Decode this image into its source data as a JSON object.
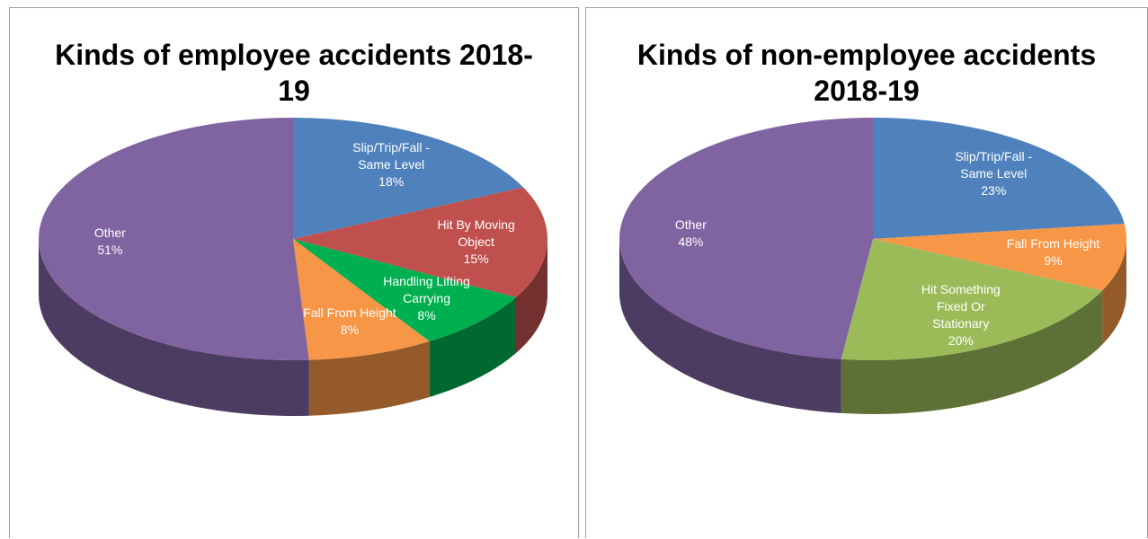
{
  "chart_data": [
    {
      "type": "pie",
      "title": "Kinds of employee accidents 2018-19",
      "categories": [
        "Slip/Trip/Fall - Same Level",
        "Hit By Moving Object",
        "Handling Lifting Carrying",
        "Fall From Height",
        "Other"
      ],
      "values": [
        18,
        15,
        8,
        8,
        51
      ],
      "value_labels": [
        "18%",
        "15%",
        "8%",
        "8%",
        "51%"
      ],
      "colors": [
        "#4f81bd",
        "#c0504d",
        "#00b050",
        "#f79646",
        "#8064a2"
      ]
    },
    {
      "type": "pie",
      "title": "Kinds of non-employee accidents 2018-19",
      "categories": [
        "Slip/Trip/Fall - Same Level",
        "Fall From Height",
        "Hit Something Fixed Or Stationary",
        "Other"
      ],
      "values": [
        23,
        9,
        20,
        48
      ],
      "value_labels": [
        "23%",
        "9%",
        "20%",
        "48%"
      ],
      "colors": [
        "#4f81bd",
        "#f79646",
        "#9bbb59",
        "#8064a2"
      ]
    }
  ]
}
